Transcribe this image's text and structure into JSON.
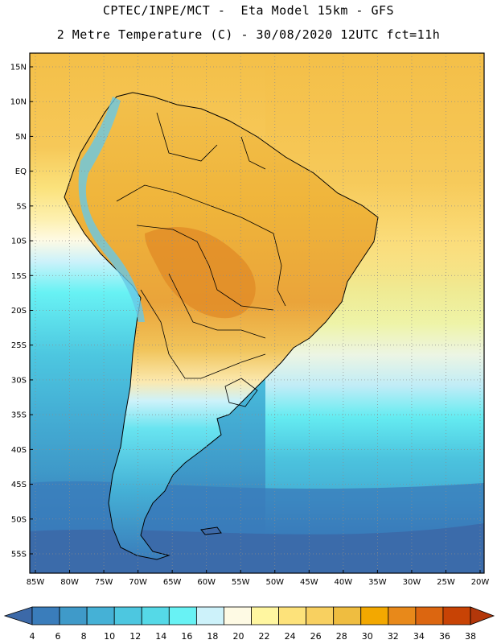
{
  "title": {
    "line1": "CPTEC/INPE/MCT -  Eta Model 15km - GFS",
    "line2": "2 Metre Temperature (C) - 30/08/2020 12UTC fct=11h"
  },
  "axes": {
    "lat_labels": [
      "15N",
      "10N",
      "5N",
      "EQ",
      "5S",
      "10S",
      "15S",
      "20S",
      "25S",
      "30S",
      "35S",
      "40S",
      "45S",
      "50S",
      "55S"
    ],
    "lon_labels": [
      "85W",
      "80W",
      "75W",
      "70W",
      "65W",
      "60W",
      "55W",
      "50W",
      "45W",
      "40W",
      "35W",
      "30W",
      "25W",
      "20W"
    ]
  },
  "colorbar": {
    "labels": [
      "4",
      "6",
      "8",
      "10",
      "12",
      "14",
      "16",
      "18",
      "20",
      "22",
      "24",
      "26",
      "28",
      "30",
      "32",
      "34",
      "36",
      "38"
    ],
    "colors": [
      "#3c69a8",
      "#3a7dbb",
      "#3f9ac9",
      "#45b1d6",
      "#4dc7e0",
      "#55d9e7",
      "#68f2f4",
      "#cdf2fa",
      "#fefae4",
      "#fff6a0",
      "#fde27a",
      "#f8d060",
      "#efbd40",
      "#f3a800",
      "#e8891a",
      "#dc6610",
      "#c84305",
      "#b3370a"
    ]
  }
}
